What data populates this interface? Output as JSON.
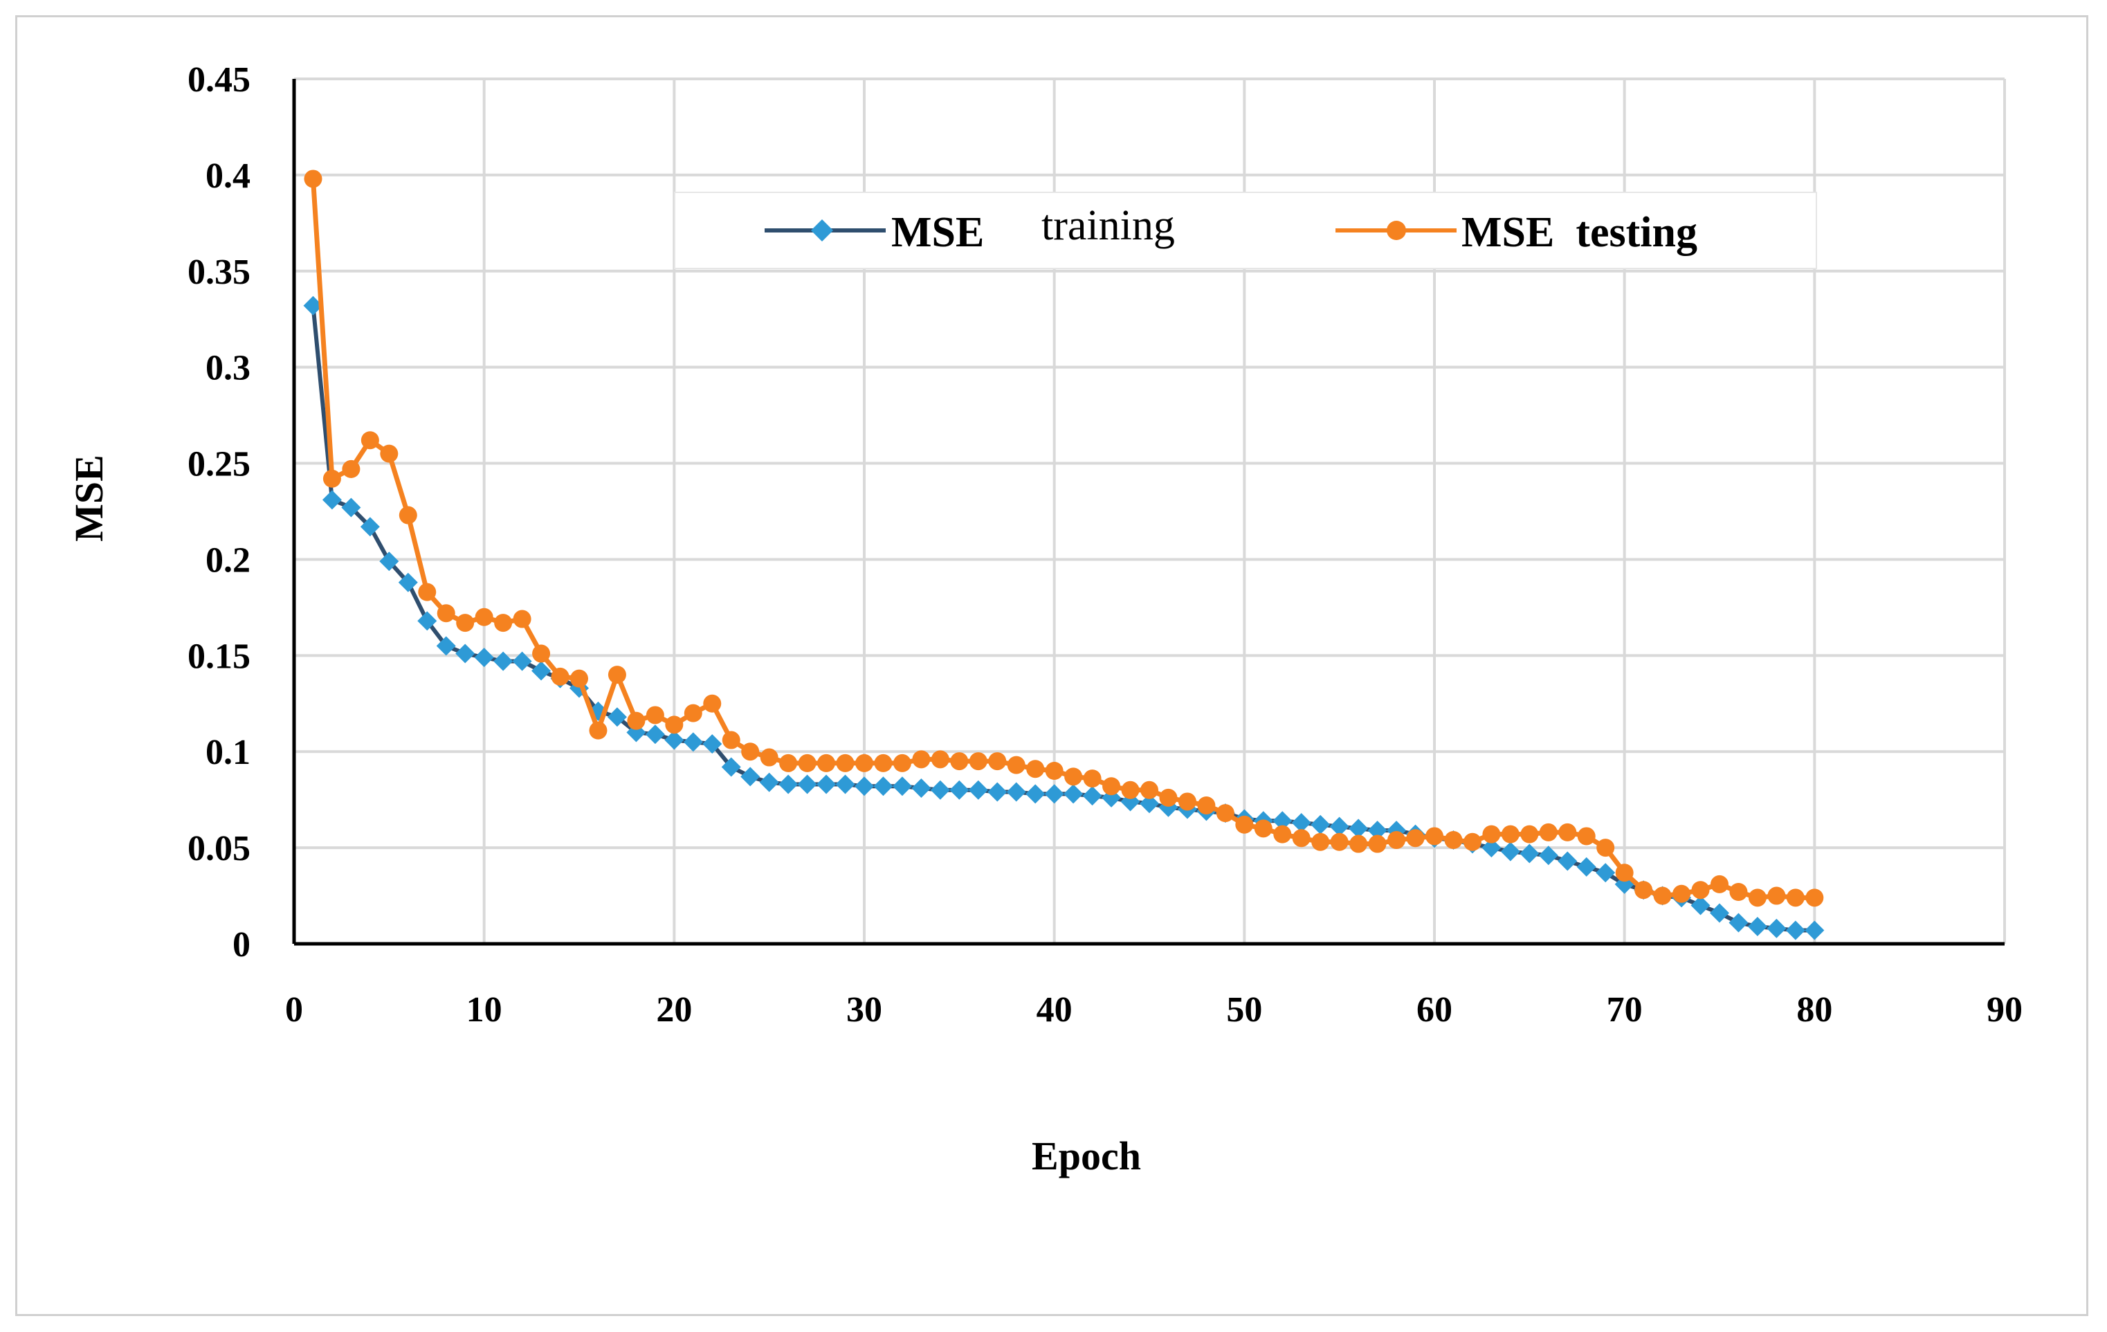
{
  "chart_data": {
    "type": "line",
    "title": "",
    "xlabel": "Epoch",
    "ylabel": "MSE",
    "xlim": [
      0,
      90
    ],
    "ylim": [
      0,
      0.45
    ],
    "xticks": [
      "0",
      "10",
      "20",
      "30",
      "40",
      "50",
      "60",
      "70",
      "80",
      "90"
    ],
    "yticks": [
      "0",
      "0.05",
      "0.1",
      "0.15",
      "0.2",
      "0.25",
      "0.3",
      "0.35",
      "0.4",
      "0.45"
    ],
    "grid": true,
    "legend_position": "top-center",
    "legend": {
      "training": {
        "bold": "MSE",
        "normal": "training"
      },
      "testing": {
        "bold": "MSE  testing"
      }
    },
    "x": [
      1,
      2,
      3,
      4,
      5,
      6,
      7,
      8,
      9,
      10,
      11,
      12,
      13,
      14,
      15,
      16,
      17,
      18,
      19,
      20,
      21,
      22,
      23,
      24,
      25,
      26,
      27,
      28,
      29,
      30,
      31,
      32,
      33,
      34,
      35,
      36,
      37,
      38,
      39,
      40,
      41,
      42,
      43,
      44,
      45,
      46,
      47,
      48,
      49,
      50,
      51,
      52,
      53,
      54,
      55,
      56,
      57,
      58,
      59,
      60,
      61,
      62,
      63,
      64,
      65,
      66,
      67,
      68,
      69,
      70,
      71,
      72,
      73,
      74,
      75,
      76,
      77,
      78,
      79,
      80
    ],
    "series": [
      {
        "name": "MSE training",
        "color": "#2e9ad6",
        "line_color": "#2f4e6e",
        "marker": "diamond",
        "values": [
          0.332,
          0.231,
          0.227,
          0.217,
          0.199,
          0.188,
          0.168,
          0.155,
          0.151,
          0.149,
          0.147,
          0.147,
          0.142,
          0.138,
          0.133,
          0.121,
          0.118,
          0.11,
          0.109,
          0.106,
          0.105,
          0.104,
          0.092,
          0.087,
          0.084,
          0.083,
          0.083,
          0.083,
          0.083,
          0.082,
          0.082,
          0.082,
          0.081,
          0.08,
          0.08,
          0.08,
          0.079,
          0.079,
          0.078,
          0.078,
          0.078,
          0.077,
          0.076,
          0.074,
          0.073,
          0.071,
          0.07,
          0.069,
          0.068,
          0.065,
          0.064,
          0.064,
          0.063,
          0.062,
          0.061,
          0.06,
          0.059,
          0.059,
          0.057,
          0.055,
          0.054,
          0.052,
          0.05,
          0.048,
          0.047,
          0.046,
          0.043,
          0.04,
          0.037,
          0.031,
          0.028,
          0.025,
          0.024,
          0.02,
          0.016,
          0.011,
          0.009,
          0.008,
          0.007,
          0.007
        ]
      },
      {
        "name": "MSE testing",
        "color": "#f58220",
        "marker": "circle",
        "values": [
          0.398,
          0.242,
          0.247,
          0.262,
          0.255,
          0.223,
          0.183,
          0.172,
          0.167,
          0.17,
          0.167,
          0.169,
          0.151,
          0.139,
          0.138,
          0.111,
          0.14,
          0.116,
          0.119,
          0.114,
          0.12,
          0.125,
          0.106,
          0.1,
          0.097,
          0.094,
          0.094,
          0.094,
          0.094,
          0.094,
          0.094,
          0.094,
          0.096,
          0.096,
          0.095,
          0.095,
          0.095,
          0.093,
          0.091,
          0.09,
          0.087,
          0.086,
          0.082,
          0.08,
          0.08,
          0.076,
          0.074,
          0.072,
          0.068,
          0.062,
          0.06,
          0.057,
          0.055,
          0.053,
          0.053,
          0.052,
          0.052,
          0.054,
          0.055,
          0.056,
          0.054,
          0.053,
          0.057,
          0.057,
          0.057,
          0.058,
          0.058,
          0.056,
          0.05,
          0.037,
          0.028,
          0.025,
          0.026,
          0.028,
          0.031,
          0.027,
          0.024,
          0.025,
          0.024,
          0.024
        ]
      }
    ]
  }
}
